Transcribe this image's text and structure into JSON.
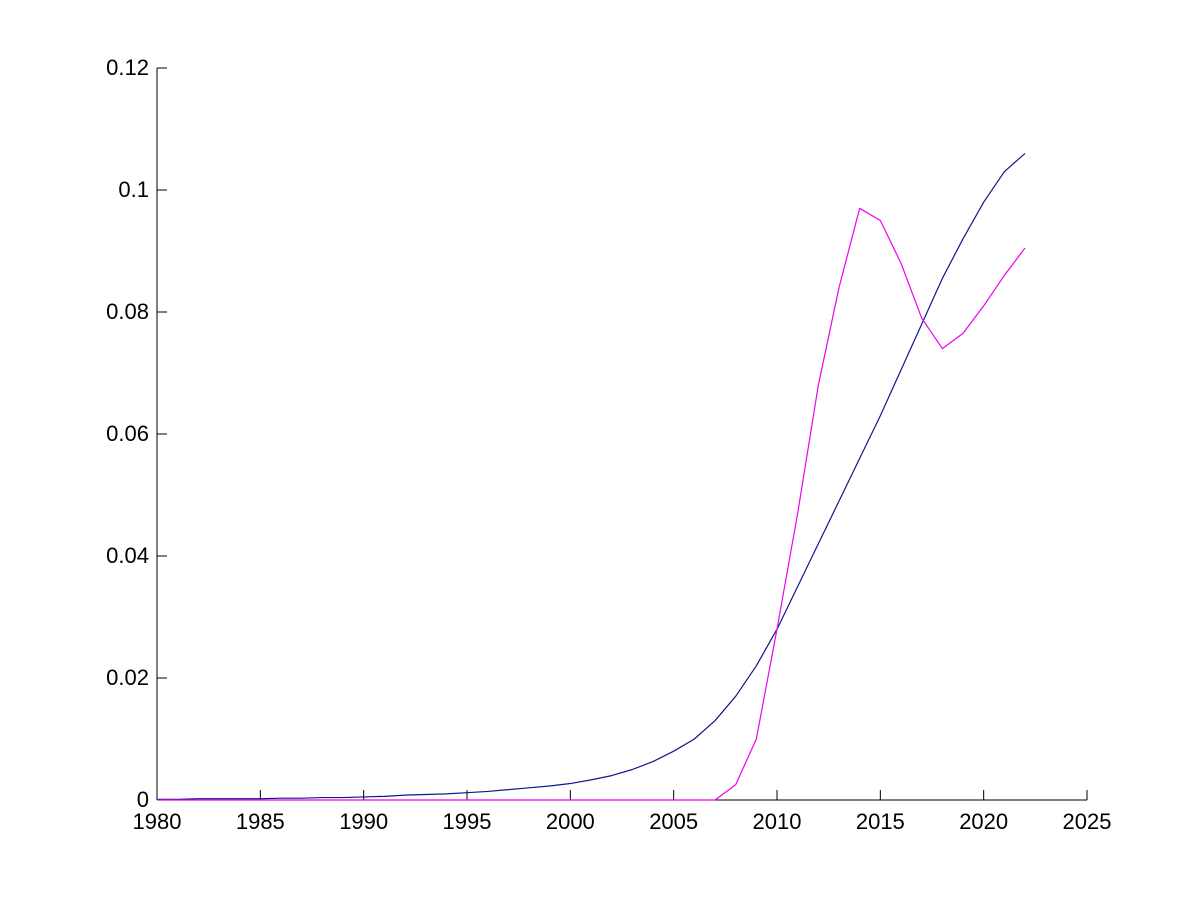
{
  "chart_data": {
    "type": "line",
    "title": "",
    "xlabel": "",
    "ylabel": "",
    "grid": false,
    "legend": null,
    "background_color": "#ffffff",
    "axis_color": "#000000",
    "xlim": [
      1980,
      2025
    ],
    "ylim": [
      0,
      0.12
    ],
    "x_ticks": [
      1980,
      1985,
      1990,
      1995,
      2000,
      2005,
      2010,
      2015,
      2020,
      2025
    ],
    "x_tick_labels": [
      "1980",
      "1985",
      "1990",
      "1995",
      "2000",
      "2005",
      "2010",
      "2015",
      "2020",
      "2025"
    ],
    "y_ticks": [
      0,
      0.02,
      0.04,
      0.06,
      0.08,
      0.1,
      0.12
    ],
    "y_tick_labels": [
      "0",
      "0.02",
      "0.04",
      "0.06",
      "0.08",
      "0.1",
      "0.12"
    ],
    "x": [
      1980,
      1981,
      1982,
      1983,
      1984,
      1985,
      1986,
      1987,
      1988,
      1989,
      1990,
      1991,
      1992,
      1993,
      1994,
      1995,
      1996,
      1997,
      1998,
      1999,
      2000,
      2001,
      2002,
      2003,
      2004,
      2005,
      2006,
      2007,
      2008,
      2009,
      2010,
      2011,
      2012,
      2013,
      2014,
      2015,
      2016,
      2017,
      2018,
      2019,
      2020,
      2021,
      2022
    ],
    "series": [
      {
        "name": "dark-blue-smooth-curve",
        "color": "#14148c",
        "values": [
          0.0001,
          0.0001,
          0.0002,
          0.0002,
          0.0002,
          0.0002,
          0.0003,
          0.0003,
          0.0004,
          0.0004,
          0.0005,
          0.0006,
          0.0008,
          0.0009,
          0.001,
          0.0012,
          0.0014,
          0.0017,
          0.002,
          0.0023,
          0.0027,
          0.0033,
          0.004,
          0.005,
          0.0063,
          0.008,
          0.01,
          0.013,
          0.017,
          0.022,
          0.028,
          0.035,
          0.042,
          0.049,
          0.056,
          0.063,
          0.0705,
          0.078,
          0.0855,
          0.092,
          0.098,
          0.103,
          0.106
        ]
      },
      {
        "name": "magenta-line",
        "color": "#ee00ee",
        "values": [
          0,
          0,
          0,
          0,
          0,
          0,
          0,
          0,
          0,
          0,
          0,
          0,
          0,
          0,
          0,
          0,
          0,
          0,
          0,
          0,
          0,
          0,
          0,
          0,
          0,
          0,
          0,
          0,
          0.0025,
          0.01,
          0.028,
          0.047,
          0.068,
          0.084,
          0.097,
          0.095,
          0.088,
          0.079,
          0.074,
          0.0765,
          0.081,
          0.086,
          0.0905
        ]
      }
    ]
  }
}
